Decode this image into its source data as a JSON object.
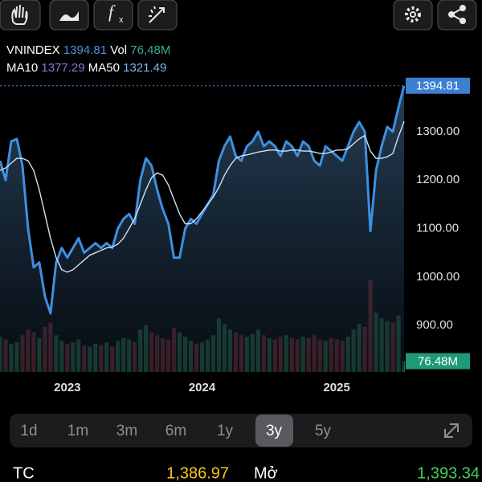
{
  "legend": {
    "vol": "76,48M",
    "ma10_label": "MA10",
    "ma10": "1377.29"
  },
  "chart_data": {
    "type": "line",
    "categories": [
      null,
      null,
      null,
      null,
      null,
      null,
      null,
      null,
      null,
      null,
      null,
      null,
      "2023",
      null,
      null,
      null,
      null,
      null,
      null,
      null,
      null,
      null,
      null,
      null,
      null,
      null,
      null,
      null,
      null,
      null,
      null,
      null,
      null,
      null,
      null,
      null,
      "2024",
      null,
      null,
      null,
      null,
      null,
      null,
      null,
      null,
      null,
      null,
      null,
      null,
      null,
      null,
      null,
      null,
      null,
      null,
      null,
      null,
      null,
      null,
      null,
      "2025",
      null,
      null,
      null,
      null,
      null,
      null,
      null,
      null,
      null,
      null,
      null,
      null
    ],
    "series": [
      {
        "name": "VNINDEX",
        "color": "#3f8fe0",
        "values": [
          1240,
          1200,
          1280,
          1285,
          1230,
          1100,
          1020,
          1030,
          960,
          925,
          1030,
          1060,
          1040,
          1060,
          1080,
          1050,
          1060,
          1070,
          1060,
          1070,
          1060,
          1100,
          1120,
          1130,
          1110,
          1200,
          1245,
          1230,
          1180,
          1140,
          1110,
          1040,
          1040,
          1100,
          1120,
          1110,
          1130,
          1150,
          1170,
          1240,
          1270,
          1290,
          1250,
          1240,
          1270,
          1280,
          1300,
          1270,
          1280,
          1270,
          1250,
          1280,
          1270,
          1250,
          1280,
          1270,
          1240,
          1230,
          1270,
          1260,
          1250,
          1240,
          1270,
          1300,
          1320,
          1300,
          1095,
          1220,
          1270,
          1310,
          1300,
          1350,
          1394.81
        ]
      },
      {
        "name": "MA50",
        "color": "#cfe2f5",
        "values": [
          1220,
          1225,
          1235,
          1245,
          1245,
          1240,
          1220,
          1180,
          1130,
          1080,
          1040,
          1015,
          1010,
          1015,
          1025,
          1035,
          1045,
          1050,
          1055,
          1060,
          1062,
          1068,
          1080,
          1100,
          1120,
          1150,
          1180,
          1205,
          1215,
          1210,
          1190,
          1160,
          1130,
          1110,
          1110,
          1120,
          1135,
          1150,
          1165,
          1185,
          1210,
          1230,
          1245,
          1250,
          1252,
          1255,
          1258,
          1260,
          1262,
          1262,
          1260,
          1260,
          1262,
          1262,
          1260,
          1260,
          1258,
          1255,
          1255,
          1258,
          1262,
          1262,
          1265,
          1275,
          1285,
          1292,
          1260,
          1245,
          1245,
          1248,
          1255,
          1290,
          1321.49
        ]
      },
      {
        "name": "Vol",
        "axis": "y2",
        "values": [
          250,
          230,
          200,
          210,
          260,
          300,
          280,
          240,
          320,
          350,
          260,
          220,
          200,
          210,
          230,
          190,
          180,
          200,
          190,
          210,
          180,
          220,
          240,
          230,
          210,
          300,
          330,
          280,
          260,
          240,
          230,
          310,
          280,
          250,
          220,
          200,
          210,
          230,
          260,
          380,
          340,
          300,
          280,
          260,
          250,
          270,
          300,
          260,
          240,
          230,
          250,
          260,
          240,
          230,
          250,
          240,
          260,
          230,
          220,
          240,
          230,
          220,
          250,
          300,
          340,
          320,
          650,
          420,
          380,
          360,
          350,
          400,
          76.48
        ]
      }
    ],
    "up_color": "#2f8f5e",
    "down_color": "#a8353a",
    "ylim": [
      804,
      1411
    ],
    "yticks": [
      {
        "value": 900,
        "label": "900.00"
      },
      {
        "value": 1000,
        "label": "1000.00"
      },
      {
        "value": 1100,
        "label": "1100.00"
      },
      {
        "value": 1200,
        "label": "1200.00"
      },
      {
        "value": 1300,
        "label": "1300.00"
      }
    ],
    "y2lim": [
      0,
      700
    ],
    "volume_tag": {
      "value": 76.48,
      "label": "76.48M"
    }
  },
  "range_buttons": {
    "items": [
      "1d",
      "1m",
      "3m",
      "6m",
      "1y",
      "3y",
      "5y"
    ],
    "selected": 5
  },
  "quote": {
    "tc_label": "TC",
    "tc": "1,386.97",
    "open_label": "Mở",
    "open": "1,393.34"
  }
}
